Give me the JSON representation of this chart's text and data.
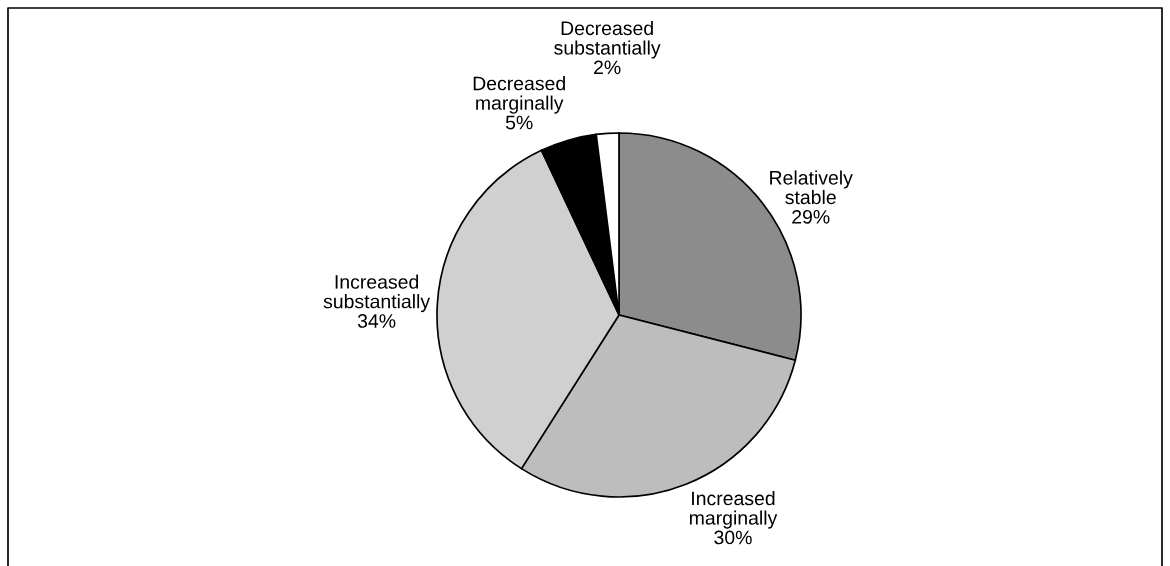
{
  "chart_data": {
    "type": "pie",
    "categories": [
      "Relatively stable",
      "Increased marginally",
      "Increased substantially",
      "Decreased marginally",
      "Decreased substantially"
    ],
    "values": [
      29,
      30,
      34,
      5,
      2
    ],
    "value_labels": [
      "29%",
      "30%",
      "34%",
      "5%",
      "2%"
    ],
    "colors": [
      "#8c8c8c",
      "#bdbdbd",
      "#d0d0d0",
      "#000000",
      "#ffffff"
    ],
    "legend": false
  }
}
